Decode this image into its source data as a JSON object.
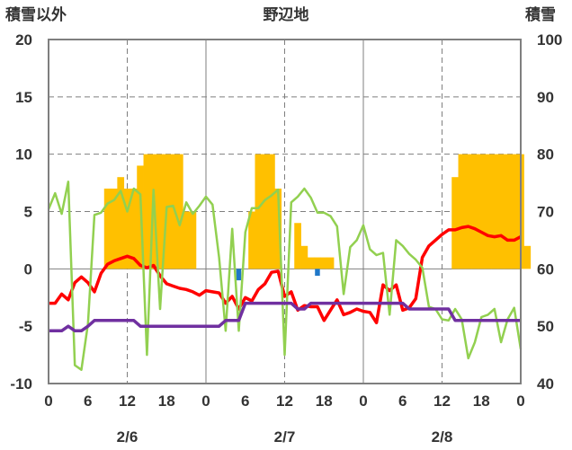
{
  "chart_data": {
    "type": "line",
    "title": "野辺地",
    "left_axis_label": "積雪以外",
    "right_axis_label": "積雪",
    "left_ylim": [
      -10,
      20
    ],
    "left_ticks": [
      "-10",
      "-5",
      "0",
      "5",
      "10",
      "15",
      "20"
    ],
    "right_ylim": [
      40,
      100
    ],
    "right_ticks": [
      "40",
      "50",
      "60",
      "70",
      "80",
      "90",
      "100"
    ],
    "x_hour_labels": [
      "0",
      "6",
      "12",
      "18",
      "0",
      "6",
      "12",
      "18",
      "0",
      "6",
      "12",
      "18",
      "0"
    ],
    "day_labels": [
      "2/6",
      "2/7",
      "2/8"
    ],
    "grid": "dashed vertical at 12h, dashed horizontal at 15/10/5, solid at 0h day boundaries",
    "series": [
      {
        "color": "#ffc000",
        "kind": "bar",
        "axis": "right",
        "values": [
          null,
          null,
          null,
          null,
          null,
          null,
          null,
          null,
          null,
          74,
          74,
          76,
          74,
          74,
          78,
          80,
          80,
          80,
          80,
          80,
          80,
          70,
          70,
          null,
          null,
          null,
          null,
          null,
          null,
          null,
          null,
          70,
          80,
          80,
          80,
          74,
          60,
          60,
          68,
          64,
          62,
          62,
          62,
          62,
          null,
          null,
          null,
          null,
          null,
          null,
          null,
          null,
          null,
          null,
          null,
          null,
          null,
          null,
          null,
          null,
          null,
          null,
          76,
          80,
          80,
          80,
          80,
          80,
          80,
          80,
          80,
          80,
          80,
          64,
          null,
          null,
          null,
          null,
          null,
          null,
          null
        ]
      },
      {
        "color": "#1f77c8",
        "kind": "bar",
        "axis": "left",
        "values": [
          null,
          null,
          null,
          null,
          null,
          null,
          null,
          null,
          null,
          null,
          null,
          null,
          null,
          null,
          null,
          null,
          null,
          null,
          null,
          null,
          null,
          null,
          null,
          null,
          null,
          null,
          null,
          null,
          null,
          -1.0,
          null,
          null,
          null,
          null,
          null,
          null,
          null,
          null,
          null,
          null,
          null,
          -0.6,
          null,
          null,
          null,
          null,
          null,
          null,
          null,
          null,
          null,
          null,
          null,
          null,
          null,
          null,
          null,
          null,
          null,
          null,
          null,
          null,
          null,
          null,
          null,
          null,
          null,
          null,
          null,
          null,
          null,
          null,
          null
        ]
      },
      {
        "color": "#ff0000",
        "kind": "line",
        "axis": "left",
        "values": [
          -3.0,
          -3.0,
          -2.2,
          -2.7,
          -1.2,
          -0.7,
          -1.2,
          -2.0,
          -0.4,
          0.4,
          0.7,
          0.9,
          1.1,
          0.9,
          0.3,
          0.1,
          0.3,
          -0.6,
          -1.3,
          -1.5,
          -1.7,
          -1.8,
          -2.0,
          -2.3,
          -1.9,
          -2.0,
          -2.1,
          -3.0,
          -2.4,
          -3.5,
          -2.5,
          -2.8,
          -1.8,
          -1.3,
          -0.3,
          -0.2,
          -2.4,
          -2.0,
          -3.6,
          -3.2,
          -3.3,
          -3.3,
          -4.5,
          -3.6,
          -2.7,
          -4.0,
          -3.8,
          -3.5,
          -3.7,
          -3.8,
          -4.7,
          -1.4,
          -1.9,
          -1.4,
          -3.6,
          -3.4,
          -2.6,
          1.0,
          2.0,
          2.5,
          3.0,
          3.4,
          3.4,
          3.6,
          3.7,
          3.5,
          3.2,
          2.9,
          2.8,
          2.9,
          2.5,
          2.5,
          2.8
        ]
      },
      {
        "color": "#92d050",
        "kind": "line",
        "axis": "left",
        "values": [
          5.2,
          6.6,
          4.8,
          7.6,
          -8.4,
          -8.8,
          -4.8,
          4.7,
          4.9,
          5.7,
          6.0,
          6.8,
          5.0,
          7.0,
          6.5,
          -7.5,
          6.9,
          -3.5,
          5.4,
          5.5,
          3.8,
          5.8,
          4.8,
          5.5,
          6.3,
          5.6,
          1.0,
          -5.4,
          3.5,
          -5.4,
          3.2,
          5.3,
          5.3,
          6.0,
          6.4,
          6.9,
          -7.5,
          5.8,
          6.3,
          7.0,
          6.2,
          4.9,
          4.9,
          4.6,
          3.7,
          -2.2,
          1.9,
          2.5,
          3.8,
          1.7,
          1.2,
          1.4,
          -4.0,
          2.5,
          2.0,
          1.3,
          0.8,
          0.1,
          -3.3,
          -3.5,
          -4.4,
          -4.5,
          -3.5,
          -4.4,
          -7.8,
          -6.4,
          -4.2,
          -4.0,
          -3.5,
          -6.4,
          -4.4,
          -3.4,
          -7.0
        ]
      },
      {
        "color": "#7030a0",
        "kind": "line",
        "axis": "left",
        "values": [
          -5.4,
          -5.4,
          -5.4,
          -5.0,
          -5.4,
          -5.4,
          -5.0,
          -4.5,
          -4.5,
          -4.5,
          -4.5,
          -4.5,
          -4.5,
          -4.5,
          -5.0,
          -5.0,
          -5.0,
          -5.0,
          -5.0,
          -5.0,
          -5.0,
          -5.0,
          -5.0,
          -5.0,
          -5.0,
          -5.0,
          -5.0,
          -4.5,
          -4.5,
          -4.5,
          -3.0,
          -3.0,
          -3.0,
          -3.0,
          -3.0,
          -3.0,
          -3.0,
          -3.0,
          -3.5,
          -3.5,
          -3.0,
          -3.0,
          -3.0,
          -3.0,
          -3.0,
          -3.0,
          -3.0,
          -3.0,
          -3.0,
          -3.0,
          -3.0,
          -3.0,
          -3.0,
          -3.0,
          -3.0,
          -3.5,
          -3.5,
          -3.5,
          -3.5,
          -3.5,
          -3.5,
          -3.5,
          -4.5,
          -4.5,
          -4.5,
          -4.5,
          -4.5,
          -4.5,
          -4.5,
          -4.5,
          -4.5,
          -4.5,
          -4.5
        ]
      }
    ]
  }
}
